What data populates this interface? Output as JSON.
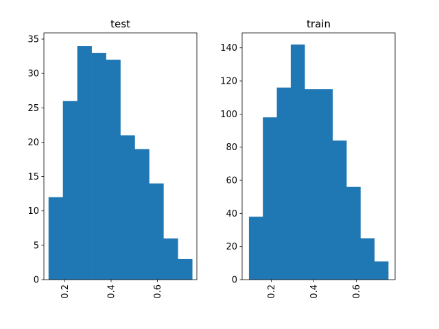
{
  "chart_data": [
    {
      "type": "bar",
      "title": "test",
      "color": "#1f77b4",
      "bin_edges": [
        0.13,
        0.192,
        0.254,
        0.316,
        0.378,
        0.44,
        0.502,
        0.564,
        0.626,
        0.688,
        0.75
      ],
      "counts": [
        12,
        26,
        34,
        33,
        32,
        21,
        19,
        14,
        6,
        3
      ],
      "xlim": [
        0.11,
        0.77
      ],
      "ylim": [
        0,
        35.9
      ],
      "xticks": [
        0.2,
        0.4,
        0.6
      ],
      "xtick_labels": [
        "0.2",
        "0.4",
        "0.6"
      ],
      "yticks": [
        0,
        5,
        10,
        15,
        20,
        25,
        30,
        35
      ],
      "ytick_labels": [
        "0",
        "5",
        "10",
        "15",
        "20",
        "25",
        "30",
        "35"
      ]
    },
    {
      "type": "bar",
      "title": "train",
      "color": "#1f77b4",
      "bin_edges": [
        0.095,
        0.1605,
        0.226,
        0.2915,
        0.357,
        0.4225,
        0.488,
        0.5535,
        0.619,
        0.6845,
        0.75
      ],
      "counts": [
        38,
        98,
        116,
        142,
        115,
        115,
        84,
        56,
        25,
        11
      ],
      "xlim": [
        0.063,
        0.782
      ],
      "ylim": [
        0,
        149
      ],
      "xticks": [
        0.2,
        0.4,
        0.6
      ],
      "xtick_labels": [
        "0.2",
        "0.4",
        "0.6"
      ],
      "yticks": [
        0,
        20,
        40,
        60,
        80,
        100,
        120,
        140
      ],
      "ytick_labels": [
        "0",
        "20",
        "40",
        "60",
        "80",
        "100",
        "120",
        "140"
      ]
    }
  ]
}
